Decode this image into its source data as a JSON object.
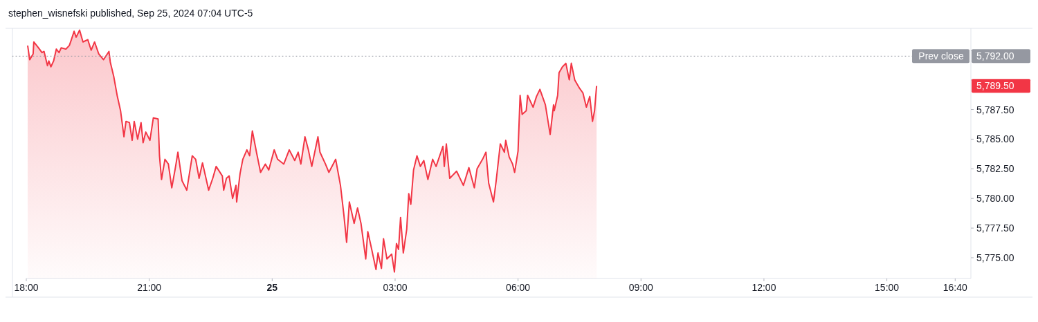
{
  "chart_data": {
    "type": "area",
    "title": "stephen_wisnefski published, Sep 25, 2024 07:04 UTC-5",
    "x": [
      "2024-09-24T18:02",
      "2024-09-24T18:05",
      "2024-09-24T18:10",
      "2024-09-24T18:11",
      "2024-09-24T18:18",
      "2024-09-24T18:23",
      "2024-09-24T18:26",
      "2024-09-24T18:31",
      "2024-09-24T18:33",
      "2024-09-24T18:36",
      "2024-09-24T18:40",
      "2024-09-24T18:44",
      "2024-09-24T18:48",
      "2024-09-24T18:51",
      "2024-09-24T18:58",
      "2024-09-24T19:03",
      "2024-09-24T19:06",
      "2024-09-24T19:10",
      "2024-09-24T19:13",
      "2024-09-24T19:18",
      "2024-09-24T19:23",
      "2024-09-24T19:30",
      "2024-09-24T19:35",
      "2024-09-24T19:40",
      "2024-09-24T19:46",
      "2024-09-24T19:53",
      "2024-09-24T20:01",
      "2024-09-24T20:03",
      "2024-09-24T20:08",
      "2024-09-24T20:13",
      "2024-09-24T20:18",
      "2024-09-24T20:23",
      "2024-09-24T20:26",
      "2024-09-24T20:31",
      "2024-09-24T20:35",
      "2024-09-24T20:38",
      "2024-09-24T20:43",
      "2024-09-24T20:48",
      "2024-09-24T20:51",
      "2024-09-24T20:55",
      "2024-09-24T21:01",
      "2024-09-24T21:06",
      "2024-09-24T21:13",
      "2024-09-24T21:15",
      "2024-09-24T21:18",
      "2024-09-24T21:23",
      "2024-09-24T21:28",
      "2024-09-24T21:33",
      "2024-09-24T21:38",
      "2024-09-24T21:42",
      "2024-09-24T21:48",
      "2024-09-24T21:55",
      "2024-09-24T22:03",
      "2024-09-24T22:08",
      "2024-09-24T22:13",
      "2024-09-24T22:18",
      "2024-09-24T22:27",
      "2024-09-24T22:33",
      "2024-09-24T22:38",
      "2024-09-24T22:47",
      "2024-09-24T22:49",
      "2024-09-24T22:53",
      "2024-09-24T22:57",
      "2024-09-24T23:02",
      "2024-09-24T23:07",
      "2024-09-24T23:08",
      "2024-09-24T23:13",
      "2024-09-24T23:17",
      "2024-09-24T23:23",
      "2024-09-24T23:27",
      "2024-09-24T23:31",
      "2024-09-24T23:37",
      "2024-09-24T23:43",
      "2024-09-24T23:50",
      "2024-09-24T23:55",
      "2024-09-25T00:03",
      "2024-09-25T00:08",
      "2024-09-25T00:17",
      "2024-09-25T00:25",
      "2024-09-25T00:33",
      "2024-09-25T00:38",
      "2024-09-25T00:42",
      "2024-09-25T00:48",
      "2024-09-25T00:53",
      "2024-09-25T00:58",
      "2024-09-25T01:07",
      "2024-09-25T01:10",
      "2024-09-25T01:18",
      "2024-09-25T01:23",
      "2024-09-25T01:33",
      "2024-09-25T01:40",
      "2024-09-25T01:45",
      "2024-09-25T01:49",
      "2024-09-25T01:53",
      "2024-09-25T02:00",
      "2024-09-25T02:05",
      "2024-09-25T02:10",
      "2024-09-25T02:17",
      "2024-09-25T02:20",
      "2024-09-25T02:25",
      "2024-09-25T02:32",
      "2024-09-25T02:35",
      "2024-09-25T02:40",
      "2024-09-25T02:43",
      "2024-09-25T02:48",
      "2024-09-25T02:55",
      "2024-09-25T02:59",
      "2024-09-25T03:02",
      "2024-09-25T03:05",
      "2024-09-25T03:08",
      "2024-09-25T03:12",
      "2024-09-25T03:17",
      "2024-09-25T03:20",
      "2024-09-25T03:23",
      "2024-09-25T03:27",
      "2024-09-25T03:32",
      "2024-09-25T03:37",
      "2024-09-25T03:42",
      "2024-09-25T03:48",
      "2024-09-25T03:55",
      "2024-09-25T04:00",
      "2024-09-25T04:10",
      "2024-09-25T04:12",
      "2024-09-25T04:15",
      "2024-09-25T04:20",
      "2024-09-25T04:30",
      "2024-09-25T04:40",
      "2024-09-25T04:48",
      "2024-09-25T04:56",
      "2024-09-25T05:00",
      "2024-09-25T05:08",
      "2024-09-25T05:13",
      "2024-09-25T05:17",
      "2024-09-25T05:24",
      "2024-09-25T05:28",
      "2024-09-25T05:34",
      "2024-09-25T05:40",
      "2024-09-25T05:42",
      "2024-09-25T05:47",
      "2024-09-25T05:52",
      "2024-09-25T05:55",
      "2024-09-25T06:00",
      "2024-09-25T06:03",
      "2024-09-25T06:06",
      "2024-09-25T06:12",
      "2024-09-25T06:14",
      "2024-09-25T06:22",
      "2024-09-25T06:27",
      "2024-09-25T06:32",
      "2024-09-25T06:40",
      "2024-09-25T06:47",
      "2024-09-25T06:52",
      "2024-09-25T06:53",
      "2024-09-25T06:58",
      "2024-09-25T07:00",
      "2024-09-25T07:05",
      "2024-09-25T07:10",
      "2024-09-25T07:15",
      "2024-09-25T07:18",
      "2024-09-25T07:23",
      "2024-09-25T07:30",
      "2024-09-25T07:35",
      "2024-09-25T07:40",
      "2024-09-25T07:45",
      "2024-09-25T07:49",
      "2024-09-25T07:52",
      "2024-09-25T07:55"
    ],
    "series": [
      {
        "color": "#f23645",
        "values": [
          5792.9,
          5791.7,
          5792.2,
          5793.2,
          5792.7,
          5792.3,
          5792.4,
          5791.2,
          5791.6,
          5791.1,
          5791.6,
          5792.6,
          5792.3,
          5792.7,
          5792.6,
          5792.9,
          5793.4,
          5794.1,
          5793.6,
          5794.2,
          5793.2,
          5793.4,
          5792.5,
          5793.2,
          5792.2,
          5791.7,
          5792.4,
          5791.5,
          5790.3,
          5788.7,
          5787.4,
          5785.2,
          5786.5,
          5786.4,
          5784.9,
          5786.5,
          5785.0,
          5786.4,
          5784.7,
          5785.6,
          5784.9,
          5786.8,
          5786.7,
          5783.6,
          5781.6,
          5783.3,
          5782.9,
          5780.9,
          5782.5,
          5783.9,
          5781.5,
          5780.7,
          5783.6,
          5783.3,
          5781.7,
          5783.0,
          5780.7,
          5781.7,
          5782.7,
          5781.9,
          5780.7,
          5781.7,
          5781.9,
          5780.0,
          5781.1,
          5779.7,
          5782.1,
          5783.3,
          5784.1,
          5783.6,
          5785.7,
          5783.9,
          5782.2,
          5782.9,
          5782.4,
          5784.1,
          5783.3,
          5782.9,
          5784.1,
          5783.2,
          5783.9,
          5782.9,
          5785.2,
          5784.1,
          5782.7,
          5785.2,
          5783.9,
          5782.9,
          5782.2,
          5783.3,
          5781.1,
          5778.6,
          5776.3,
          5779.7,
          5777.9,
          5779.2,
          5777.9,
          5774.9,
          5777.2,
          5775.9,
          5774.0,
          5775.4,
          5774.1,
          5776.6,
          5774.9,
          5775.3,
          5773.8,
          5776.2,
          5775.7,
          5778.4,
          5775.4,
          5777.4,
          5780.4,
          5779.5,
          5782.4,
          5783.6,
          5782.7,
          5783.2,
          5781.6,
          5783.3,
          5782.7,
          5784.4,
          5782.7,
          5784.6,
          5781.7,
          5782.3,
          5781.1,
          5782.6,
          5780.9,
          5782.5,
          5783.3,
          5783.9,
          5781.3,
          5779.7,
          5781.5,
          5784.6,
          5783.9,
          5784.9,
          5783.5,
          5782.9,
          5782.2,
          5784.0,
          5788.7,
          5787.1,
          5787.4,
          5788.7,
          5787.7,
          5788.6,
          5789.2,
          5787.9,
          5785.4,
          5787.9,
          5787.4,
          5788.7,
          5790.6,
          5791.1,
          5791.4,
          5790.0,
          5791.4,
          5790.0,
          5789.3,
          5788.9,
          5787.7,
          5788.6,
          5786.5,
          5787.4,
          5789.5
        ]
      }
    ],
    "xlim": [
      "2024-09-24T18:00",
      "2024-09-25T17:03"
    ],
    "xticks": [
      {
        "value": "2024-09-24T18:00",
        "label": "18:00"
      },
      {
        "value": "2024-09-24T21:00",
        "label": "21:00"
      },
      {
        "value": "2024-09-25T00:00",
        "label": "25"
      },
      {
        "value": "2024-09-25T03:00",
        "label": "03:00"
      },
      {
        "value": "2024-09-25T06:00",
        "label": "06:00"
      },
      {
        "value": "2024-09-25T09:00",
        "label": "09:00"
      },
      {
        "value": "2024-09-25T12:00",
        "label": "12:00"
      },
      {
        "value": "2024-09-25T15:00",
        "label": "15:00"
      },
      {
        "value": "2024-09-25T16:40",
        "label": "16:40"
      }
    ],
    "ylim": [
      5773.25,
      5794.35
    ],
    "yticks": [
      {
        "value": 5775,
        "label": "5,775.00"
      },
      {
        "value": 5777.5,
        "label": "5,777.50"
      },
      {
        "value": 5780,
        "label": "5,780.00"
      },
      {
        "value": 5782.5,
        "label": "5,782.50"
      },
      {
        "value": 5785,
        "label": "5,785.00"
      },
      {
        "value": 5787.5,
        "label": "5,787.50"
      },
      {
        "value": 5790,
        "label": null
      },
      {
        "value": 5792.5,
        "label": null
      }
    ],
    "ref_lines": [
      {
        "axis": "y",
        "value": 5792,
        "label": "Prev close",
        "color": "#9598a1",
        "line_style": "dotted"
      }
    ],
    "annotations": [
      "5,792.00",
      "5,789.50"
    ]
  }
}
